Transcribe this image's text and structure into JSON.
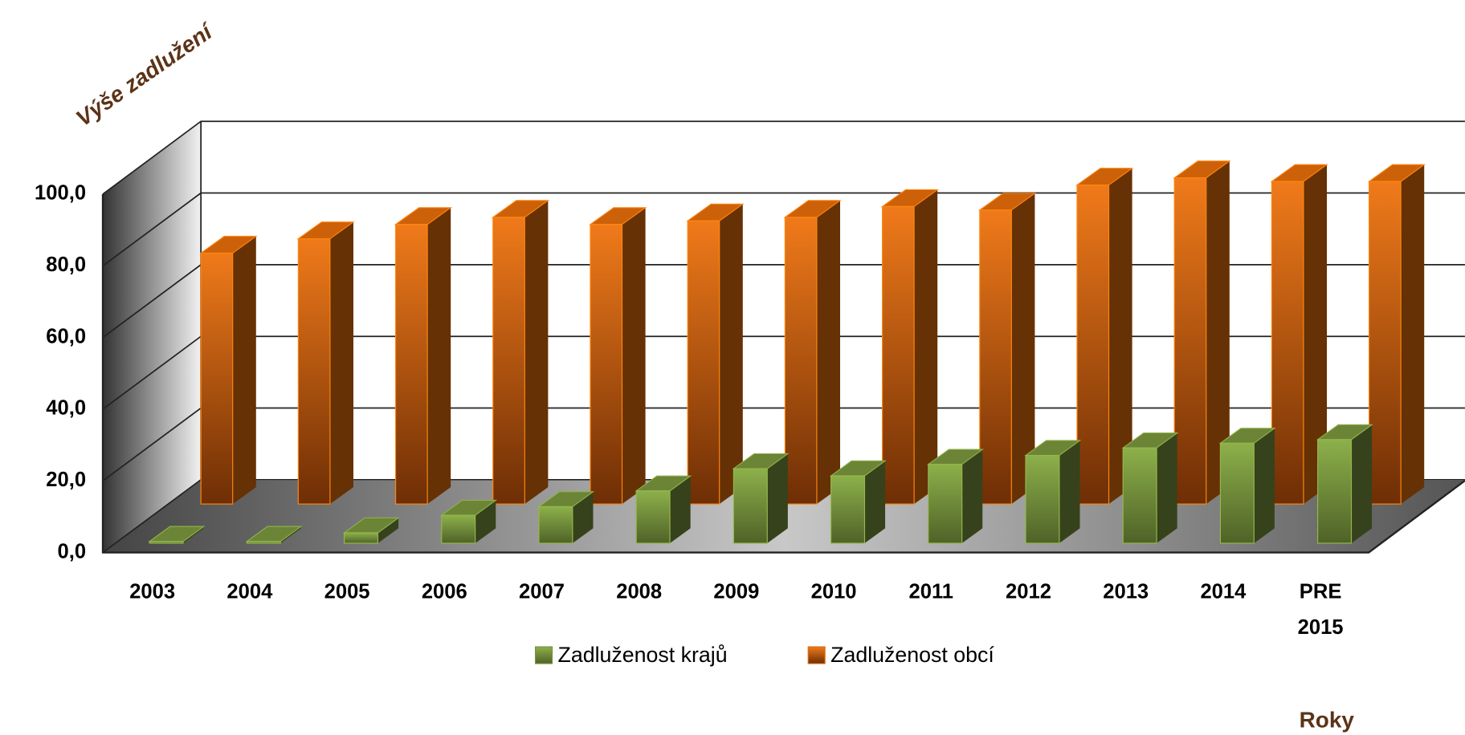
{
  "chart_data": {
    "type": "bar3d",
    "y_label": "Výše zadlužení",
    "x_label": "Roky",
    "categories": [
      "2003",
      "2004",
      "2005",
      "2006",
      "2007",
      "2008",
      "2009",
      "2010",
      "2011",
      "2012",
      "2013",
      "2014",
      "PRE 2015"
    ],
    "series": [
      {
        "name": "Zadluženost krajů",
        "color": "#77933c",
        "values": [
          0.5,
          0.5,
          2.9,
          7.8,
          10.2,
          14.6,
          20.8,
          18.8,
          22,
          24.5,
          26.6,
          27.9,
          28.9
        ]
      },
      {
        "name": "Zadluženost obcí",
        "color": "#e36c0a",
        "values": [
          70,
          74,
          78,
          80,
          78,
          79,
          80,
          83,
          82,
          89,
          91,
          90,
          90
        ]
      }
    ],
    "ylim": [
      0,
      100
    ],
    "yticks": [
      {
        "value": 0,
        "label": "0,0"
      },
      {
        "value": 20,
        "label": "20,0"
      },
      {
        "value": 40,
        "label": "40,0"
      },
      {
        "value": 60,
        "label": "60,0"
      },
      {
        "value": 80,
        "label": "80,0"
      },
      {
        "value": 100,
        "label": "100,0"
      }
    ],
    "grid": true,
    "legend": "bottom"
  }
}
